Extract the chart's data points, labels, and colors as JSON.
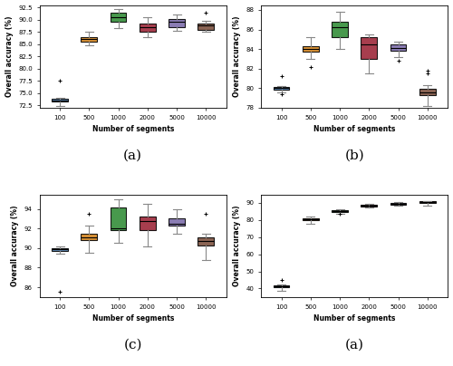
{
  "x_labels": [
    "100",
    "500",
    "1000",
    "2000",
    "5000",
    "10000"
  ],
  "x_positions": [
    1,
    2,
    3,
    4,
    5,
    6
  ],
  "xlabel": "Number of segments",
  "ylabel": "Overall accuracy (%)",
  "colors": [
    "#4878a8",
    "#d4831a",
    "#2e8b34",
    "#9b2335",
    "#7b6baa",
    "#7b4f3c"
  ],
  "subplot_a": {
    "title": "(a)",
    "ylim": [
      72,
      93
    ],
    "yticks": [
      72.5,
      75.0,
      77.5,
      80.0,
      82.5,
      85.0,
      87.5,
      90.0,
      92.5
    ],
    "boxes": [
      {
        "q1": 73.2,
        "median": 73.5,
        "q3": 73.8,
        "whislo": 72.3,
        "whishi": 74.0,
        "fliers": [
          77.5
        ]
      },
      {
        "q1": 85.5,
        "median": 86.0,
        "q3": 86.5,
        "whislo": 84.8,
        "whishi": 87.5,
        "fliers": []
      },
      {
        "q1": 89.5,
        "median": 90.5,
        "q3": 91.5,
        "whislo": 88.3,
        "whishi": 92.2,
        "fliers": []
      },
      {
        "q1": 87.5,
        "median": 88.5,
        "q3": 89.2,
        "whislo": 86.5,
        "whishi": 90.5,
        "fliers": []
      },
      {
        "q1": 88.5,
        "median": 89.5,
        "q3": 90.2,
        "whislo": 87.8,
        "whishi": 91.0,
        "fliers": []
      },
      {
        "q1": 88.0,
        "median": 88.8,
        "q3": 89.3,
        "whislo": 87.5,
        "whishi": 89.8,
        "fliers": [
          91.5
        ]
      }
    ]
  },
  "subplot_b": {
    "title": "(b)",
    "ylim": [
      78,
      88.5
    ],
    "yticks": [
      78,
      80,
      82,
      84,
      86,
      88
    ],
    "boxes": [
      {
        "q1": 79.85,
        "median": 80.0,
        "q3": 80.1,
        "whislo": 79.6,
        "whishi": 80.2,
        "fliers": [
          81.2,
          79.4
        ]
      },
      {
        "q1": 83.7,
        "median": 84.0,
        "q3": 84.3,
        "whislo": 83.0,
        "whishi": 85.2,
        "fliers": [
          82.2
        ]
      },
      {
        "q1": 85.2,
        "median": 86.2,
        "q3": 86.8,
        "whislo": 84.0,
        "whishi": 87.8,
        "fliers": []
      },
      {
        "q1": 83.0,
        "median": 84.5,
        "q3": 85.2,
        "whislo": 81.5,
        "whishi": 85.5,
        "fliers": []
      },
      {
        "q1": 83.8,
        "median": 84.1,
        "q3": 84.5,
        "whislo": 83.2,
        "whishi": 84.8,
        "fliers": [
          82.8
        ]
      },
      {
        "q1": 79.3,
        "median": 79.6,
        "q3": 79.9,
        "whislo": 78.2,
        "whishi": 80.3,
        "fliers": [
          81.8,
          81.5
        ]
      }
    ]
  },
  "subplot_c": {
    "title": "(c)",
    "ylim": [
      85,
      95.5
    ],
    "yticks": [
      86,
      88,
      90,
      92,
      94
    ],
    "boxes": [
      {
        "q1": 89.7,
        "median": 89.9,
        "q3": 90.0,
        "whislo": 89.4,
        "whishi": 90.2,
        "fliers": [
          85.5
        ]
      },
      {
        "q1": 90.8,
        "median": 91.1,
        "q3": 91.5,
        "whislo": 89.5,
        "whishi": 92.3,
        "fliers": [
          93.5
        ]
      },
      {
        "q1": 91.8,
        "median": 92.0,
        "q3": 94.2,
        "whislo": 90.5,
        "whishi": 95.0,
        "fliers": []
      },
      {
        "q1": 91.8,
        "median": 92.8,
        "q3": 93.2,
        "whislo": 90.2,
        "whishi": 94.5,
        "fliers": []
      },
      {
        "q1": 92.3,
        "median": 92.5,
        "q3": 93.0,
        "whislo": 91.5,
        "whishi": 94.0,
        "fliers": []
      },
      {
        "q1": 90.3,
        "median": 90.7,
        "q3": 91.1,
        "whislo": 88.8,
        "whishi": 91.5,
        "fliers": [
          93.5
        ]
      }
    ]
  },
  "subplot_d": {
    "title": "(a)",
    "ylim": [
      35,
      95
    ],
    "yticks": [
      40,
      50,
      60,
      70,
      80,
      90
    ],
    "boxes": [
      {
        "q1": 40.8,
        "median": 41.2,
        "q3": 41.6,
        "whislo": 38.5,
        "whishi": 42.5,
        "fliers": [
          45.0
        ]
      },
      {
        "q1": 79.8,
        "median": 80.5,
        "q3": 81.0,
        "whislo": 78.0,
        "whishi": 82.0,
        "fliers": []
      },
      {
        "q1": 84.5,
        "median": 85.2,
        "q3": 85.8,
        "whislo": 83.5,
        "whishi": 86.5,
        "fliers": [
          83.5
        ]
      },
      {
        "q1": 88.0,
        "median": 88.5,
        "q3": 88.8,
        "whislo": 87.5,
        "whishi": 89.2,
        "fliers": []
      },
      {
        "q1": 89.0,
        "median": 89.5,
        "q3": 90.0,
        "whislo": 88.5,
        "whishi": 90.5,
        "fliers": []
      },
      {
        "q1": 90.2,
        "median": 90.5,
        "q3": 90.8,
        "whislo": 88.5,
        "whishi": 91.0,
        "fliers": []
      }
    ]
  }
}
